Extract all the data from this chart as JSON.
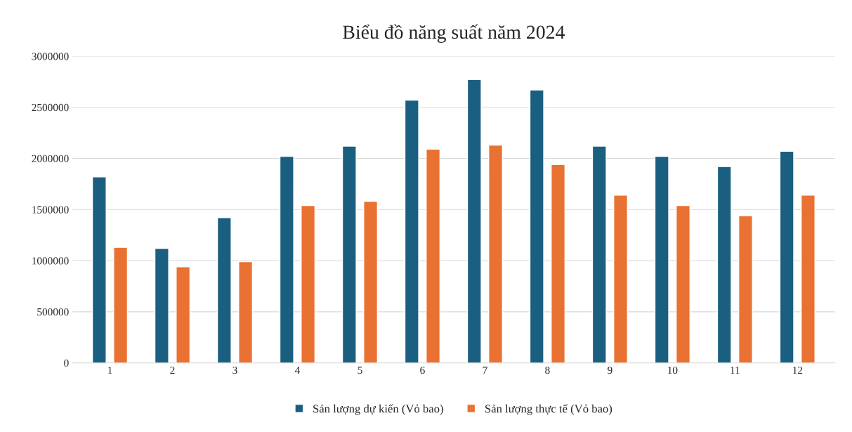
{
  "chart_data": {
    "type": "bar",
    "title": "Biểu đồ năng suất năm 2024",
    "categories": [
      "1",
      "2",
      "3",
      "4",
      "5",
      "6",
      "7",
      "8",
      "9",
      "10",
      "11",
      "12"
    ],
    "series": [
      {
        "name": "Sản lượng dự kiến (Vỏ bao)",
        "color": "#1b5f80",
        "values": [
          1820000,
          1120000,
          1420000,
          2020000,
          2120000,
          2570000,
          2770000,
          2670000,
          2120000,
          2020000,
          1920000,
          2070000
        ]
      },
      {
        "name": "Sản lượng thực tế (Vỏ bao)",
        "color": "#e97132",
        "values": [
          1130000,
          940000,
          990000,
          1540000,
          1580000,
          2090000,
          2130000,
          1940000,
          1640000,
          1540000,
          1440000,
          1640000
        ]
      }
    ],
    "ylim": [
      0,
      3000000
    ],
    "yticks": [
      0,
      500000,
      1000000,
      1500000,
      2000000,
      2500000,
      3000000
    ],
    "grid": "y",
    "legend": "bottom"
  }
}
